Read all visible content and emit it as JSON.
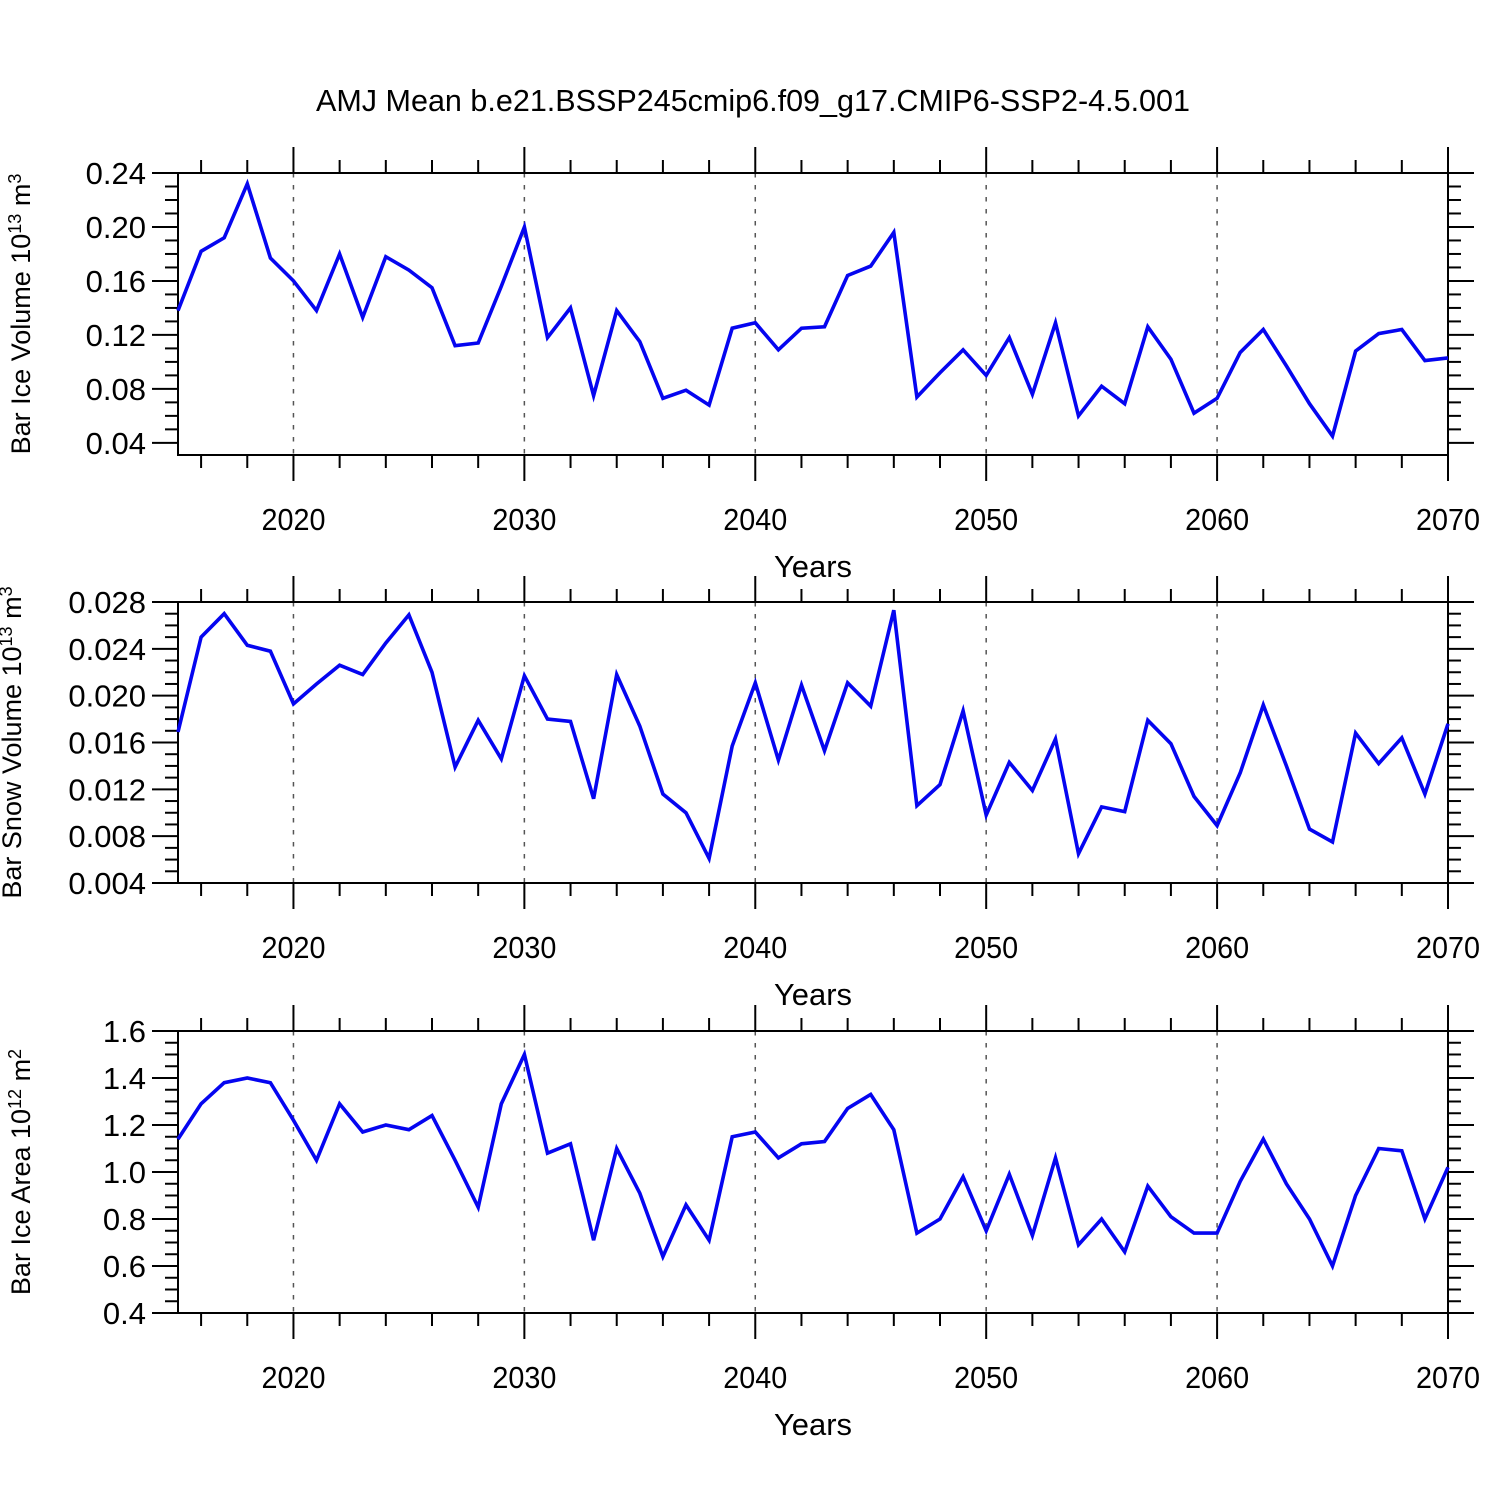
{
  "title": "AMJ Mean b.e21.BSSP245cmip6.f09_g17.CMIP6-SSP2-4.5.001",
  "colors": {
    "line": "#0505f0",
    "axis": "#000000",
    "grid": "#555555",
    "text": "#000000",
    "background": "#ffffff"
  },
  "x_axis": {
    "label": "Years",
    "start": 2015,
    "end": 2070,
    "major_ticks": [
      "2020",
      "2030",
      "2040",
      "2050",
      "2060",
      "2070"
    ],
    "grid_years": [
      2020,
      2030,
      2040,
      2050,
      2060
    ],
    "minor_interval": 2
  },
  "chart_data": [
    {
      "type": "line",
      "name": "ice-volume",
      "ylabel": "Bar Ice Volume 10^13 m^3",
      "ylabel_parts": [
        {
          "t": "Bar Ice Volume 10"
        },
        {
          "t": "13",
          "sup": true
        },
        {
          "t": " m"
        },
        {
          "t": "3",
          "sup": true
        }
      ],
      "ylim": [
        0.031,
        0.24
      ],
      "ytick_values": [
        0.04,
        0.08,
        0.12,
        0.16,
        0.2,
        0.24
      ],
      "ytick_labels": [
        "0.04",
        "0.08",
        "0.12",
        "0.16",
        "0.20",
        "0.24"
      ],
      "y_minor_step": 0.01,
      "x_start_year": 2015,
      "values": [
        0.138,
        0.182,
        0.192,
        0.232,
        0.177,
        0.16,
        0.138,
        0.18,
        0.133,
        0.178,
        0.168,
        0.155,
        0.112,
        0.114,
        0.156,
        0.2,
        0.118,
        0.14,
        0.075,
        0.138,
        0.115,
        0.073,
        0.079,
        0.068,
        0.125,
        0.129,
        0.109,
        0.125,
        0.126,
        0.164,
        0.171,
        0.196,
        0.074,
        0.092,
        0.109,
        0.09,
        0.118,
        0.076,
        0.129,
        0.06,
        0.082,
        0.069,
        0.126,
        0.102,
        0.062,
        0.073,
        0.107,
        0.124,
        0.097,
        0.069,
        0.045,
        0.108,
        0.121,
        0.124,
        0.101,
        0.103
      ]
    },
    {
      "type": "line",
      "name": "snow-volume",
      "ylabel": "Bar Snow Volume 10^13 m^3",
      "ylabel_parts": [
        {
          "t": "Bar Snow Volume 10"
        },
        {
          "t": "13",
          "sup": true
        },
        {
          "t": " m"
        },
        {
          "t": "3",
          "sup": true
        }
      ],
      "ylim": [
        0.004,
        0.028
      ],
      "ytick_values": [
        0.004,
        0.008,
        0.012,
        0.016,
        0.02,
        0.024,
        0.028
      ],
      "ytick_labels": [
        "0.004",
        "0.008",
        "0.012",
        "0.016",
        "0.020",
        "0.024",
        "0.028"
      ],
      "y_minor_step": 0.001,
      "x_start_year": 2015,
      "values": [
        0.0169,
        0.025,
        0.027,
        0.0243,
        0.0238,
        0.0193,
        0.021,
        0.0226,
        0.0218,
        0.0245,
        0.0269,
        0.022,
        0.0139,
        0.0179,
        0.0146,
        0.0217,
        0.018,
        0.0178,
        0.0112,
        0.0218,
        0.0174,
        0.0116,
        0.01,
        0.0061,
        0.0157,
        0.0211,
        0.0145,
        0.0209,
        0.0153,
        0.0211,
        0.0191,
        0.0273,
        0.0106,
        0.0124,
        0.0187,
        0.0098,
        0.0143,
        0.0119,
        0.0163,
        0.0065,
        0.0105,
        0.0101,
        0.0179,
        0.0159,
        0.0114,
        0.0089,
        0.0134,
        0.0192,
        0.014,
        0.0086,
        0.0075,
        0.0168,
        0.0142,
        0.0164,
        0.0116,
        0.0176
      ]
    },
    {
      "type": "line",
      "name": "ice-area",
      "ylabel": "Bar Ice Area 10^12 m^2",
      "ylabel_parts": [
        {
          "t": "Bar Ice Area 10"
        },
        {
          "t": "12",
          "sup": true
        },
        {
          "t": " m"
        },
        {
          "t": "2",
          "sup": true
        }
      ],
      "ylim": [
        0.4,
        1.6
      ],
      "ytick_values": [
        0.4,
        0.6,
        0.8,
        1.0,
        1.2,
        1.4,
        1.6
      ],
      "ytick_labels": [
        "0.4",
        "0.6",
        "0.8",
        "1.0",
        "1.2",
        "1.4",
        "1.6"
      ],
      "y_minor_step": 0.05,
      "x_start_year": 2015,
      "values": [
        1.14,
        1.29,
        1.38,
        1.4,
        1.38,
        1.22,
        1.05,
        1.29,
        1.17,
        1.2,
        1.18,
        1.24,
        1.05,
        0.85,
        1.29,
        1.5,
        1.08,
        1.12,
        0.71,
        1.1,
        0.91,
        0.64,
        0.86,
        0.71,
        1.15,
        1.17,
        1.06,
        1.12,
        1.13,
        1.27,
        1.33,
        1.18,
        0.74,
        0.8,
        0.98,
        0.75,
        0.99,
        0.73,
        1.06,
        0.69,
        0.8,
        0.66,
        0.94,
        0.81,
        0.74,
        0.74,
        0.96,
        1.14,
        0.95,
        0.8,
        0.6,
        0.9,
        1.1,
        1.09,
        0.8,
        1.02
      ]
    }
  ]
}
